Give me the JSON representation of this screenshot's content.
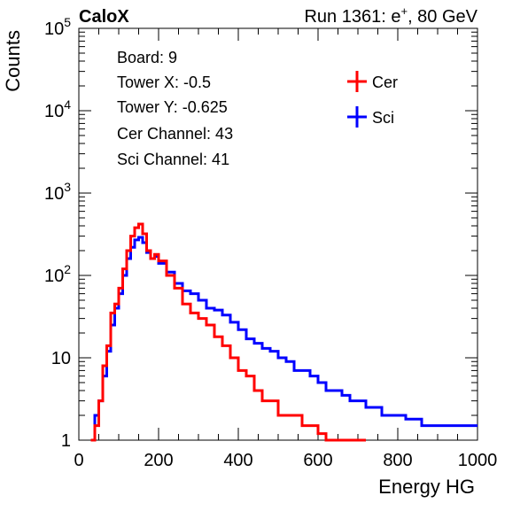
{
  "header": {
    "brand": "CaloX",
    "run_label": "Run 1361: e",
    "run_sup": "+",
    "run_energy": ", 80 GeV"
  },
  "info_box": {
    "lines": [
      "Board: 9",
      "Tower X: -0.5",
      "Tower Y: -0.625",
      "Cer Channel: 43",
      "Sci Channel: 41"
    ]
  },
  "legend": {
    "entries": [
      {
        "label": "Cer",
        "color": "#ff0000"
      },
      {
        "label": "Sci",
        "color": "#0000ff"
      }
    ]
  },
  "chart_data": {
    "type": "line",
    "xlabel": "Energy HG",
    "ylabel": "Counts",
    "xlim": [
      0,
      1000
    ],
    "ylim": [
      1,
      100000
    ],
    "yscale": "log",
    "x_ticks": [
      "0",
      "200",
      "400",
      "600",
      "800",
      "1000"
    ],
    "y_ticks": [
      {
        "base": "1",
        "exp": ""
      },
      {
        "base": "10",
        "exp": ""
      },
      {
        "base": "10",
        "exp": "2"
      },
      {
        "base": "10",
        "exp": "3"
      },
      {
        "base": "10",
        "exp": "4"
      },
      {
        "base": "10",
        "exp": "5"
      }
    ],
    "series": [
      {
        "name": "Cer",
        "color": "#ff0000",
        "x": [
          30,
          40,
          50,
          60,
          70,
          80,
          90,
          100,
          110,
          120,
          130,
          140,
          150,
          160,
          170,
          180,
          190,
          200,
          220,
          240,
          260,
          280,
          300,
          320,
          340,
          360,
          380,
          400,
          420,
          440,
          460,
          480,
          500,
          520,
          540,
          560,
          580,
          600,
          620,
          640,
          660,
          680,
          700
        ],
        "y": [
          1,
          1.5,
          3,
          8,
          14,
          35,
          45,
          70,
          120,
          200,
          300,
          380,
          420,
          320,
          200,
          160,
          180,
          150,
          100,
          70,
          45,
          35,
          30,
          25,
          18,
          14,
          10,
          7,
          6,
          4,
          3,
          3,
          2,
          2,
          2,
          1.5,
          1.5,
          1.2,
          1,
          1,
          1,
          1,
          1
        ]
      },
      {
        "name": "Sci",
        "color": "#0000ff",
        "x": [
          30,
          40,
          50,
          60,
          70,
          80,
          90,
          100,
          110,
          120,
          130,
          140,
          150,
          160,
          170,
          180,
          190,
          200,
          220,
          240,
          260,
          280,
          300,
          320,
          340,
          360,
          380,
          400,
          420,
          440,
          460,
          480,
          500,
          520,
          540,
          560,
          580,
          600,
          620,
          640,
          660,
          680,
          700,
          720,
          740,
          760,
          780,
          800,
          820,
          840,
          860,
          880,
          900,
          920,
          940,
          960,
          980,
          1000
        ],
        "y": [
          1,
          2,
          3,
          6,
          12,
          25,
          40,
          60,
          100,
          160,
          220,
          270,
          290,
          250,
          190,
          160,
          170,
          140,
          110,
          80,
          65,
          60,
          50,
          40,
          38,
          33,
          27,
          22,
          17,
          15,
          13,
          12,
          10,
          9,
          7,
          7,
          6,
          5,
          4,
          4,
          3.5,
          3,
          3,
          2.5,
          2.5,
          2,
          2,
          2,
          1.8,
          1.8,
          1.5,
          1.5,
          1.5,
          1.5,
          1.5,
          1.5,
          1.5,
          1.5
        ]
      }
    ],
    "grid": false,
    "legend_position": "top-right"
  }
}
